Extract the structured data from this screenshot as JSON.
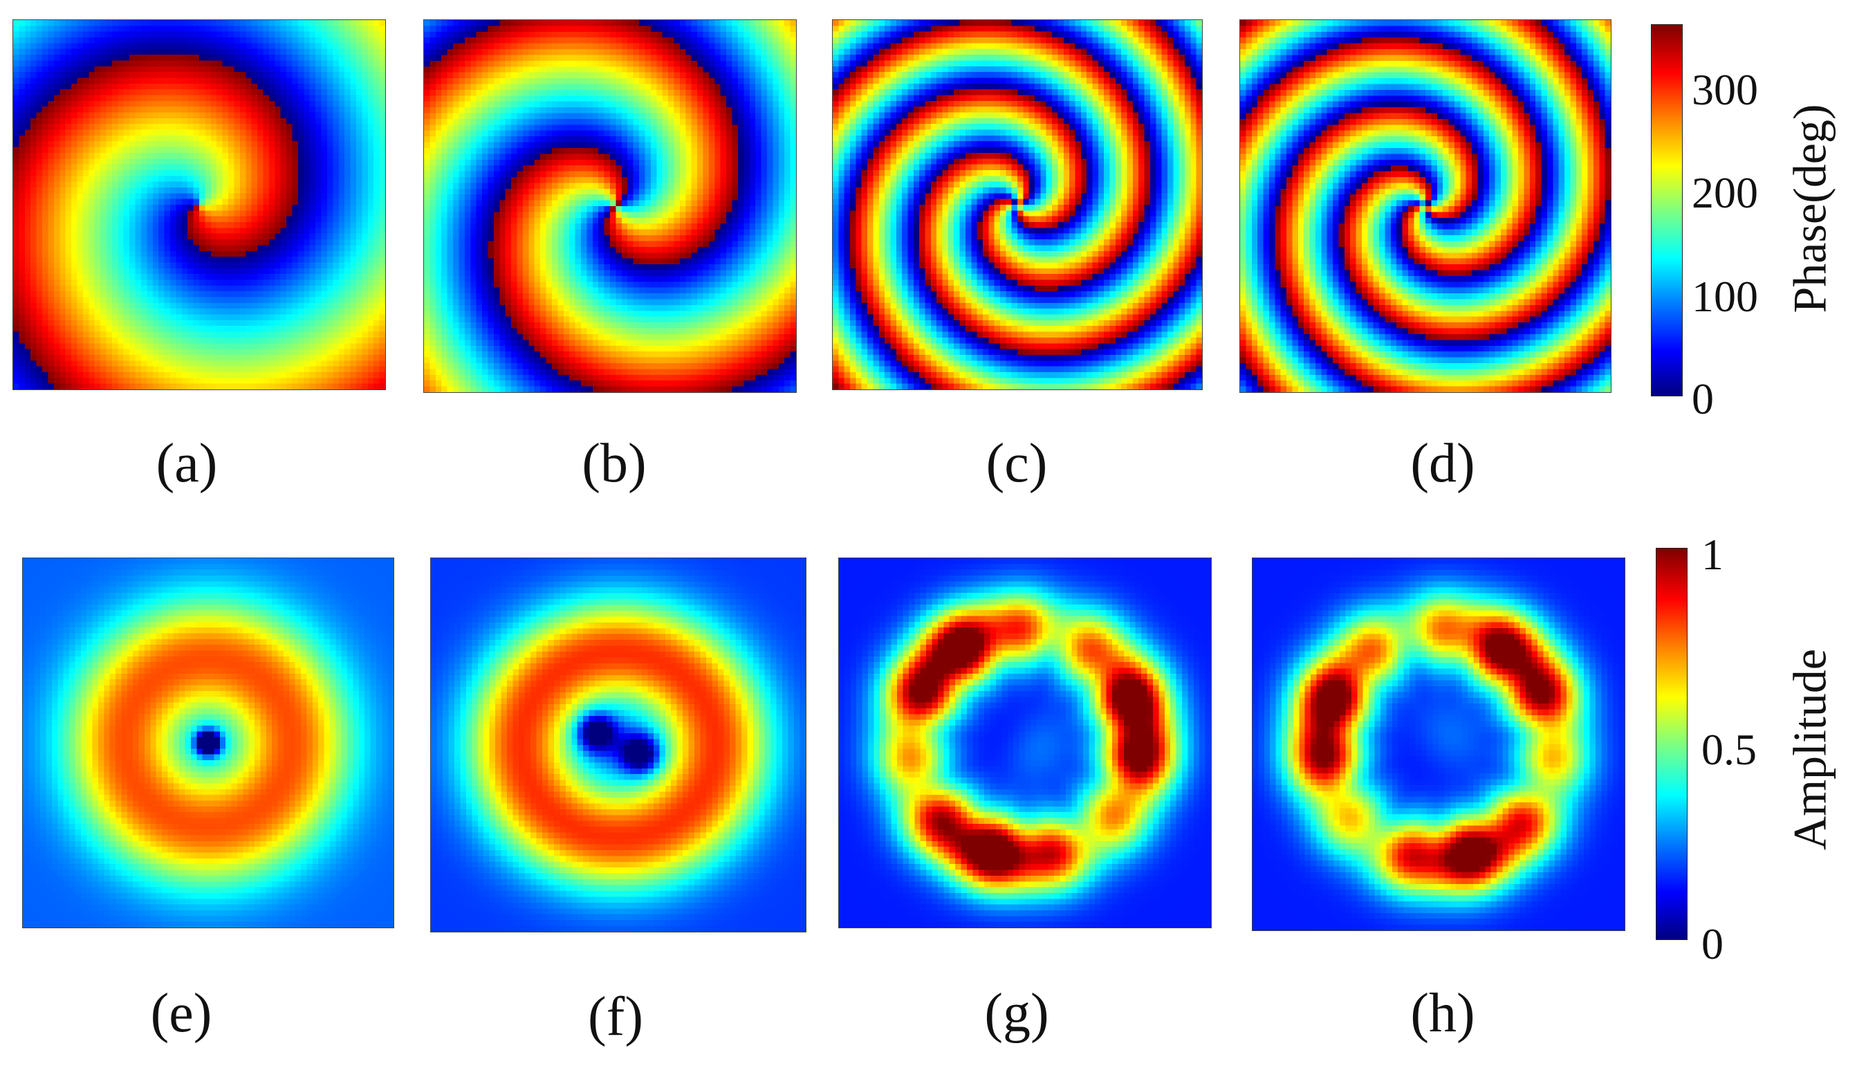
{
  "figure": {
    "panel_labels": [
      "(a)",
      "(b)",
      "(c)",
      "(d)",
      "(e)",
      "(f)",
      "(g)",
      "(h)"
    ]
  },
  "chart_data": [
    {
      "type": "heatmap",
      "row": "phase",
      "panels": [
        {
          "label": "(a)",
          "description": "single spiral phase, one arm"
        },
        {
          "label": "(b)",
          "description": "spiral phase, two arms"
        },
        {
          "label": "(c)",
          "description": "spiral phase, three arms, multiple wraps"
        },
        {
          "label": "(d)",
          "description": "spiral phase, three arms, multiple wraps"
        }
      ],
      "colorbar": {
        "title": "Phase(deg)",
        "ticks": [
          0,
          100,
          200,
          300
        ],
        "range": [
          0,
          360
        ],
        "colormap": "jet"
      }
    },
    {
      "type": "heatmap",
      "row": "amplitude",
      "panels": [
        {
          "label": "(e)",
          "description": "ring amplitude, single dark core"
        },
        {
          "label": "(f)",
          "description": "ring amplitude, two dark cores"
        },
        {
          "label": "(g)",
          "description": "irregular ring amplitude, saturated lobes"
        },
        {
          "label": "(h)",
          "description": "irregular ring amplitude, saturated lobes"
        }
      ],
      "colorbar": {
        "title": "Amplitude",
        "ticks": [
          0,
          0.5,
          1
        ],
        "tick_labels": [
          "0",
          "0.5",
          "1"
        ],
        "range": [
          0,
          1
        ],
        "colormap": "jet"
      }
    }
  ],
  "colors": {
    "jet": [
      "#00007f",
      "#0000ff",
      "#007fff",
      "#00ffff",
      "#7fff7f",
      "#ffff00",
      "#ff7f00",
      "#ff0000",
      "#7f0000"
    ]
  }
}
